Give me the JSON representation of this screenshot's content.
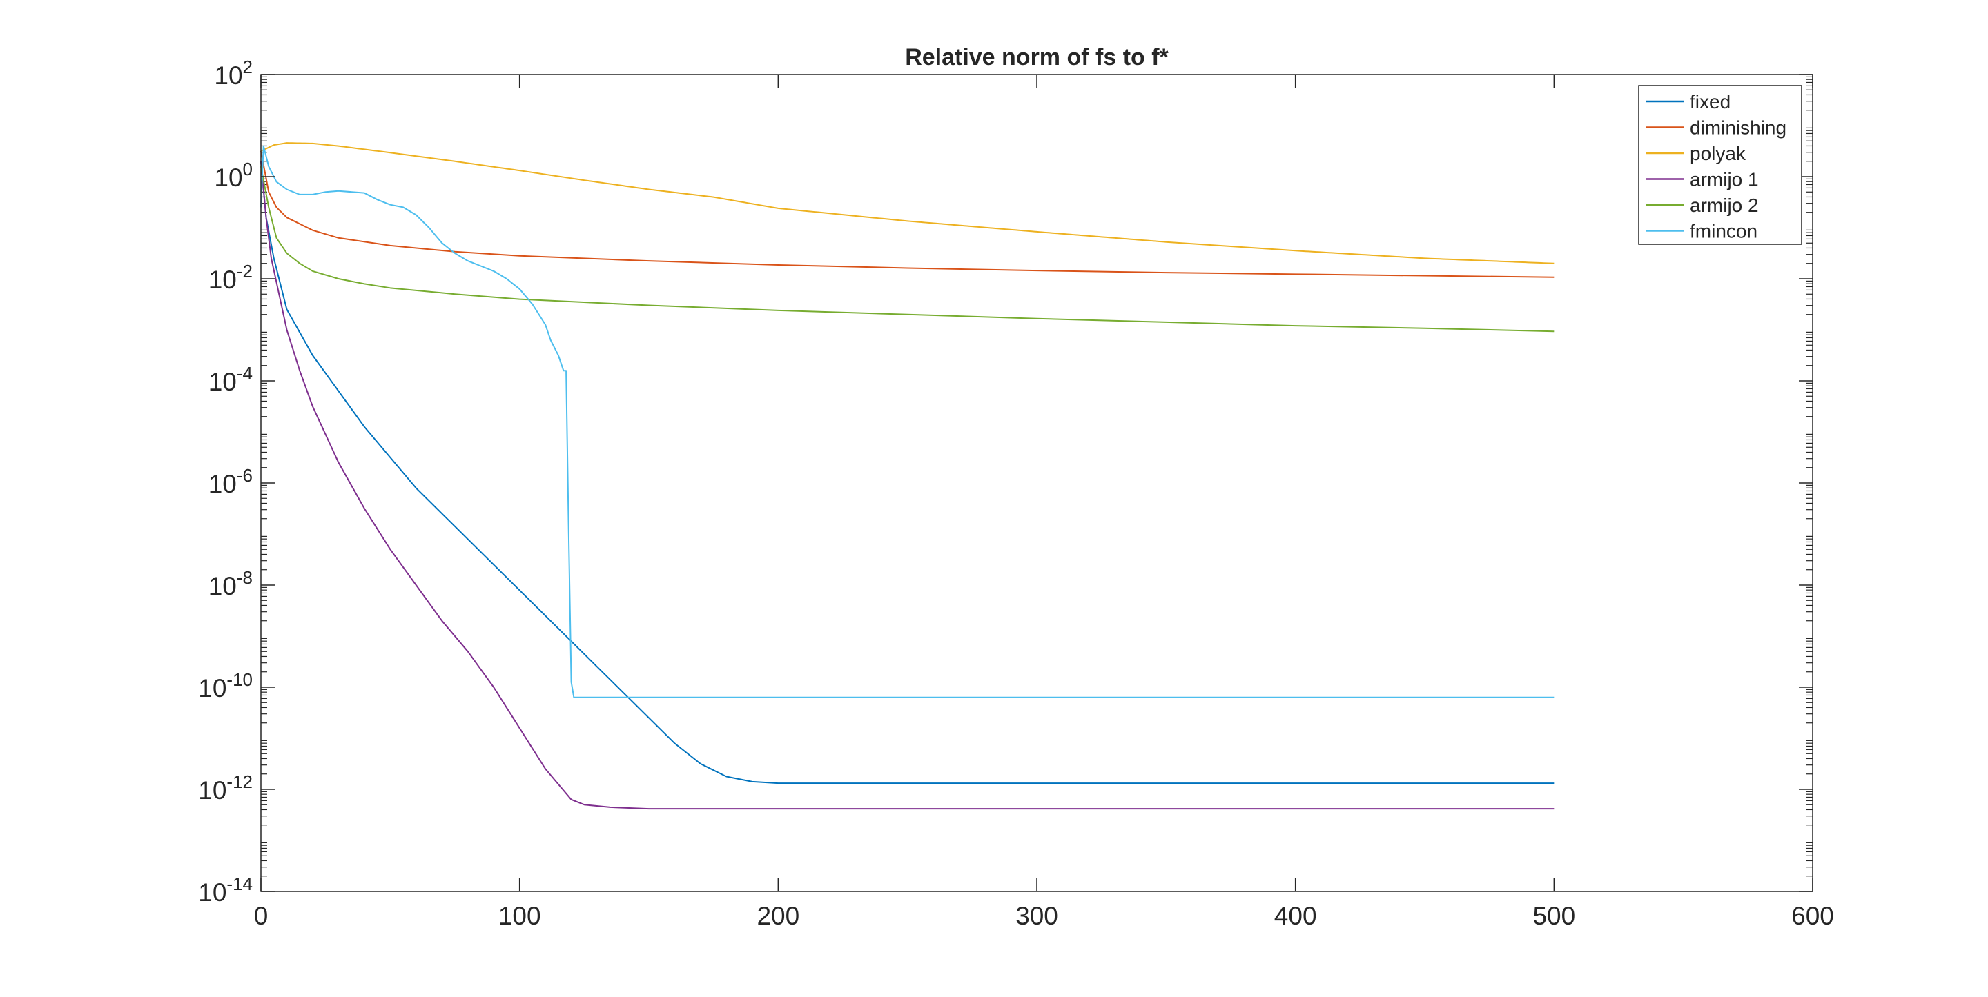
{
  "chart_data": {
    "type": "line",
    "title": "Relative norm of fs to f*",
    "xlabel": "",
    "ylabel": "",
    "xscale": "linear",
    "yscale": "log",
    "xlim": [
      0,
      600
    ],
    "ylim_exp": [
      -14,
      2
    ],
    "xticks": [
      "0",
      "100",
      "200",
      "300",
      "400",
      "500",
      "600"
    ],
    "yticks": [
      {
        "base": "10",
        "exp": "2"
      },
      {
        "base": "10",
        "exp": "0"
      },
      {
        "base": "10",
        "exp": "-2"
      },
      {
        "base": "10",
        "exp": "-4"
      },
      {
        "base": "10",
        "exp": "-6"
      },
      {
        "base": "10",
        "exp": "-8"
      },
      {
        "base": "10",
        "exp": "-10"
      },
      {
        "base": "10",
        "exp": "-12"
      },
      {
        "base": "10",
        "exp": "-14"
      }
    ],
    "legend_position": "top-right",
    "series": [
      {
        "name": "fixed",
        "color": "#0072BD",
        "points": [
          [
            0,
            0.3
          ],
          [
            2,
            -0.8
          ],
          [
            5,
            -1.6
          ],
          [
            10,
            -2.6
          ],
          [
            20,
            -3.5
          ],
          [
            30,
            -4.2
          ],
          [
            40,
            -4.9
          ],
          [
            50,
            -5.5
          ],
          [
            60,
            -6.1
          ],
          [
            70,
            -6.6
          ],
          [
            80,
            -7.1
          ],
          [
            90,
            -7.6
          ],
          [
            100,
            -8.1
          ],
          [
            110,
            -8.6
          ],
          [
            120,
            -9.1
          ],
          [
            130,
            -9.6
          ],
          [
            140,
            -10.1
          ],
          [
            150,
            -10.6
          ],
          [
            160,
            -11.1
          ],
          [
            170,
            -11.5
          ],
          [
            180,
            -11.75
          ],
          [
            190,
            -11.85
          ],
          [
            200,
            -11.88
          ],
          [
            300,
            -11.88
          ],
          [
            400,
            -11.88
          ],
          [
            500,
            -11.88
          ]
        ]
      },
      {
        "name": "diminishing",
        "color": "#D95319",
        "points": [
          [
            0,
            0.5
          ],
          [
            3,
            -0.3
          ],
          [
            6,
            -0.6
          ],
          [
            10,
            -0.8
          ],
          [
            20,
            -1.05
          ],
          [
            30,
            -1.2
          ],
          [
            50,
            -1.35
          ],
          [
            75,
            -1.47
          ],
          [
            100,
            -1.55
          ],
          [
            150,
            -1.65
          ],
          [
            200,
            -1.73
          ],
          [
            250,
            -1.79
          ],
          [
            300,
            -1.84
          ],
          [
            350,
            -1.88
          ],
          [
            400,
            -1.91
          ],
          [
            450,
            -1.94
          ],
          [
            500,
            -1.97
          ]
        ]
      },
      {
        "name": "polyak",
        "color": "#EDB120",
        "oscillating": true,
        "amplitude": 0.09,
        "period": 5,
        "points": [
          [
            0,
            0.5
          ],
          [
            5,
            0.62
          ],
          [
            10,
            0.66
          ],
          [
            20,
            0.65
          ],
          [
            30,
            0.6
          ],
          [
            50,
            0.47
          ],
          [
            75,
            0.3
          ],
          [
            100,
            0.12
          ],
          [
            125,
            -0.07
          ],
          [
            150,
            -0.25
          ],
          [
            175,
            -0.4
          ],
          [
            200,
            -0.62
          ],
          [
            250,
            -0.87
          ],
          [
            300,
            -1.08
          ],
          [
            350,
            -1.28
          ],
          [
            400,
            -1.45
          ],
          [
            450,
            -1.6
          ],
          [
            500,
            -1.7
          ]
        ]
      },
      {
        "name": "armijo 1",
        "color": "#7E2F8E",
        "points": [
          [
            0,
            0.3
          ],
          [
            2,
            -0.8
          ],
          [
            4,
            -1.6
          ],
          [
            7,
            -2.3
          ],
          [
            10,
            -3.0
          ],
          [
            15,
            -3.8
          ],
          [
            20,
            -4.5
          ],
          [
            30,
            -5.6
          ],
          [
            40,
            -6.5
          ],
          [
            50,
            -7.3
          ],
          [
            60,
            -8.0
          ],
          [
            70,
            -8.7
          ],
          [
            80,
            -9.3
          ],
          [
            90,
            -10.0
          ],
          [
            100,
            -10.8
          ],
          [
            110,
            -11.6
          ],
          [
            115,
            -11.9
          ],
          [
            120,
            -12.2
          ],
          [
            125,
            -12.3
          ],
          [
            135,
            -12.35
          ],
          [
            150,
            -12.38
          ],
          [
            200,
            -12.38
          ],
          [
            300,
            -12.38
          ],
          [
            400,
            -12.38
          ],
          [
            500,
            -12.38
          ]
        ]
      },
      {
        "name": "armijo 2",
        "color": "#77AC30",
        "points": [
          [
            0,
            0.2
          ],
          [
            3,
            -0.6
          ],
          [
            6,
            -1.2
          ],
          [
            10,
            -1.5
          ],
          [
            15,
            -1.7
          ],
          [
            20,
            -1.85
          ],
          [
            30,
            -2.0
          ],
          [
            40,
            -2.1
          ],
          [
            50,
            -2.18
          ],
          [
            75,
            -2.3
          ],
          [
            100,
            -2.4
          ],
          [
            150,
            -2.52
          ],
          [
            200,
            -2.62
          ],
          [
            250,
            -2.7
          ],
          [
            300,
            -2.78
          ],
          [
            350,
            -2.85
          ],
          [
            400,
            -2.92
          ],
          [
            450,
            -2.97
          ],
          [
            500,
            -3.03
          ]
        ]
      },
      {
        "name": "fmincon",
        "color": "#4DBEEE",
        "points": [
          [
            0,
            -0.6
          ],
          [
            1,
            0.6
          ],
          [
            3,
            0.2
          ],
          [
            6,
            -0.1
          ],
          [
            10,
            -0.25
          ],
          [
            15,
            -0.35
          ],
          [
            20,
            -0.35
          ],
          [
            25,
            -0.3
          ],
          [
            30,
            -0.28
          ],
          [
            40,
            -0.32
          ],
          [
            45,
            -0.45
          ],
          [
            50,
            -0.55
          ],
          [
            55,
            -0.6
          ],
          [
            60,
            -0.75
          ],
          [
            65,
            -1.0
          ],
          [
            70,
            -1.3
          ],
          [
            75,
            -1.5
          ],
          [
            80,
            -1.65
          ],
          [
            85,
            -1.75
          ],
          [
            90,
            -1.85
          ],
          [
            95,
            -2.0
          ],
          [
            100,
            -2.2
          ],
          [
            105,
            -2.5
          ],
          [
            110,
            -2.9
          ],
          [
            112,
            -3.2
          ],
          [
            115,
            -3.5
          ],
          [
            117,
            -3.8
          ],
          [
            118,
            -3.8
          ],
          [
            119,
            -7.0
          ],
          [
            120,
            -9.9
          ],
          [
            121,
            -10.2
          ],
          [
            130,
            -10.2
          ],
          [
            200,
            -10.2
          ],
          [
            300,
            -10.2
          ],
          [
            400,
            -10.2
          ],
          [
            500,
            -10.2
          ]
        ]
      }
    ]
  }
}
